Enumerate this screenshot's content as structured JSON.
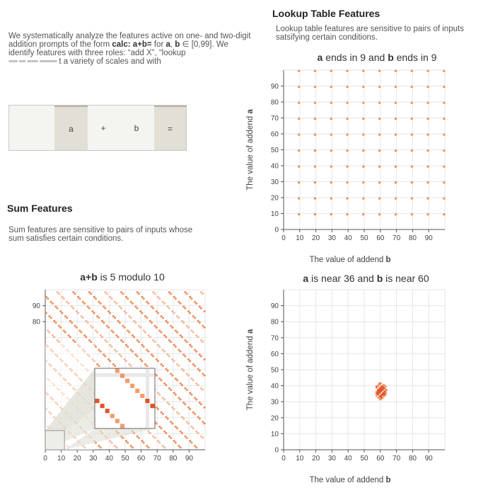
{
  "left": {
    "intro_pre": "We systematically analyze the features active on one- and two-digit addition prompts of the form ",
    "intro_prompt": "calc: a+b=",
    "intro_mid1": " for ",
    "intro_a": "a",
    "intro_mid2": ", ",
    "intro_b": "b",
    "intro_post": " ∈ [0,99]. We identify features with three roles: “add X”, “lookup",
    "intro_line4": "t a variety of scales and with",
    "prompt_tokens": [
      "",
      "a",
      "+",
      "b",
      "="
    ],
    "sum_heading": "Sum Features",
    "sum_desc": "Sum features are sensitive to pairs of inputs whose sum satisfies certain conditions."
  },
  "right": {
    "lookup_heading": "Lookup Table Features",
    "lookup_desc": "Lookup table features are sensitive to pairs of inputs satsifying certain conditions."
  },
  "colors": {
    "accent": "#f07a3c",
    "accent_dark": "#e04a1e",
    "grid": "#e6e6e6",
    "highlight": "#e2e0d6"
  },
  "chart_data": [
    {
      "type": "heatmap",
      "title_parts": [
        {
          "text": "a",
          "bold": true
        },
        {
          "text": " ends in 9 and ",
          "bold": false
        },
        {
          "text": "b",
          "bold": true
        },
        {
          "text": " ends in 9",
          "bold": false
        }
      ],
      "xlabel": "The value of addend b",
      "ylabel": "The value of addend a",
      "x_ticks": [
        0,
        10,
        20,
        30,
        40,
        50,
        60,
        70,
        80,
        90
      ],
      "y_ticks": [
        0,
        10,
        20,
        30,
        40,
        50,
        60,
        70,
        80,
        90
      ],
      "xlim": [
        0,
        100
      ],
      "ylim": [
        0,
        100
      ],
      "pattern": "a mod 10 = 9 and b mod 10 = 9"
    },
    {
      "type": "heatmap",
      "title_parts": [
        {
          "text": "a+b",
          "bold": true
        },
        {
          "text": " is 5 modulo 10",
          "bold": false
        }
      ],
      "xlabel": "",
      "ylabel": "",
      "x_ticks": [
        0,
        10,
        20,
        30,
        40,
        50,
        60,
        70,
        80,
        90
      ],
      "y_ticks": [
        80,
        90
      ],
      "xlim": [
        0,
        100
      ],
      "ylim": [
        0,
        100
      ],
      "pattern": "(a+b) mod 10 = 5",
      "inset_zoom": {
        "x_range": [
          0,
          12
        ],
        "y_range": [
          0,
          12
        ]
      }
    },
    {
      "type": "heatmap",
      "title_parts": [
        {
          "text": "a",
          "bold": true
        },
        {
          "text": " is near 36 and ",
          "bold": false
        },
        {
          "text": "b",
          "bold": true
        },
        {
          "text": " is near 60",
          "bold": false
        }
      ],
      "xlabel": "The value of addend b",
      "ylabel": "The value of addend a",
      "x_ticks": [
        0,
        10,
        20,
        30,
        40,
        50,
        60,
        70,
        80,
        90
      ],
      "y_ticks": [
        0,
        10,
        20,
        30,
        40,
        50,
        60,
        70,
        80,
        90
      ],
      "xlim": [
        0,
        100
      ],
      "ylim": [
        0,
        100
      ],
      "center": {
        "a": 36,
        "b": 60
      },
      "pattern": "cluster near a=36, b=60"
    }
  ]
}
